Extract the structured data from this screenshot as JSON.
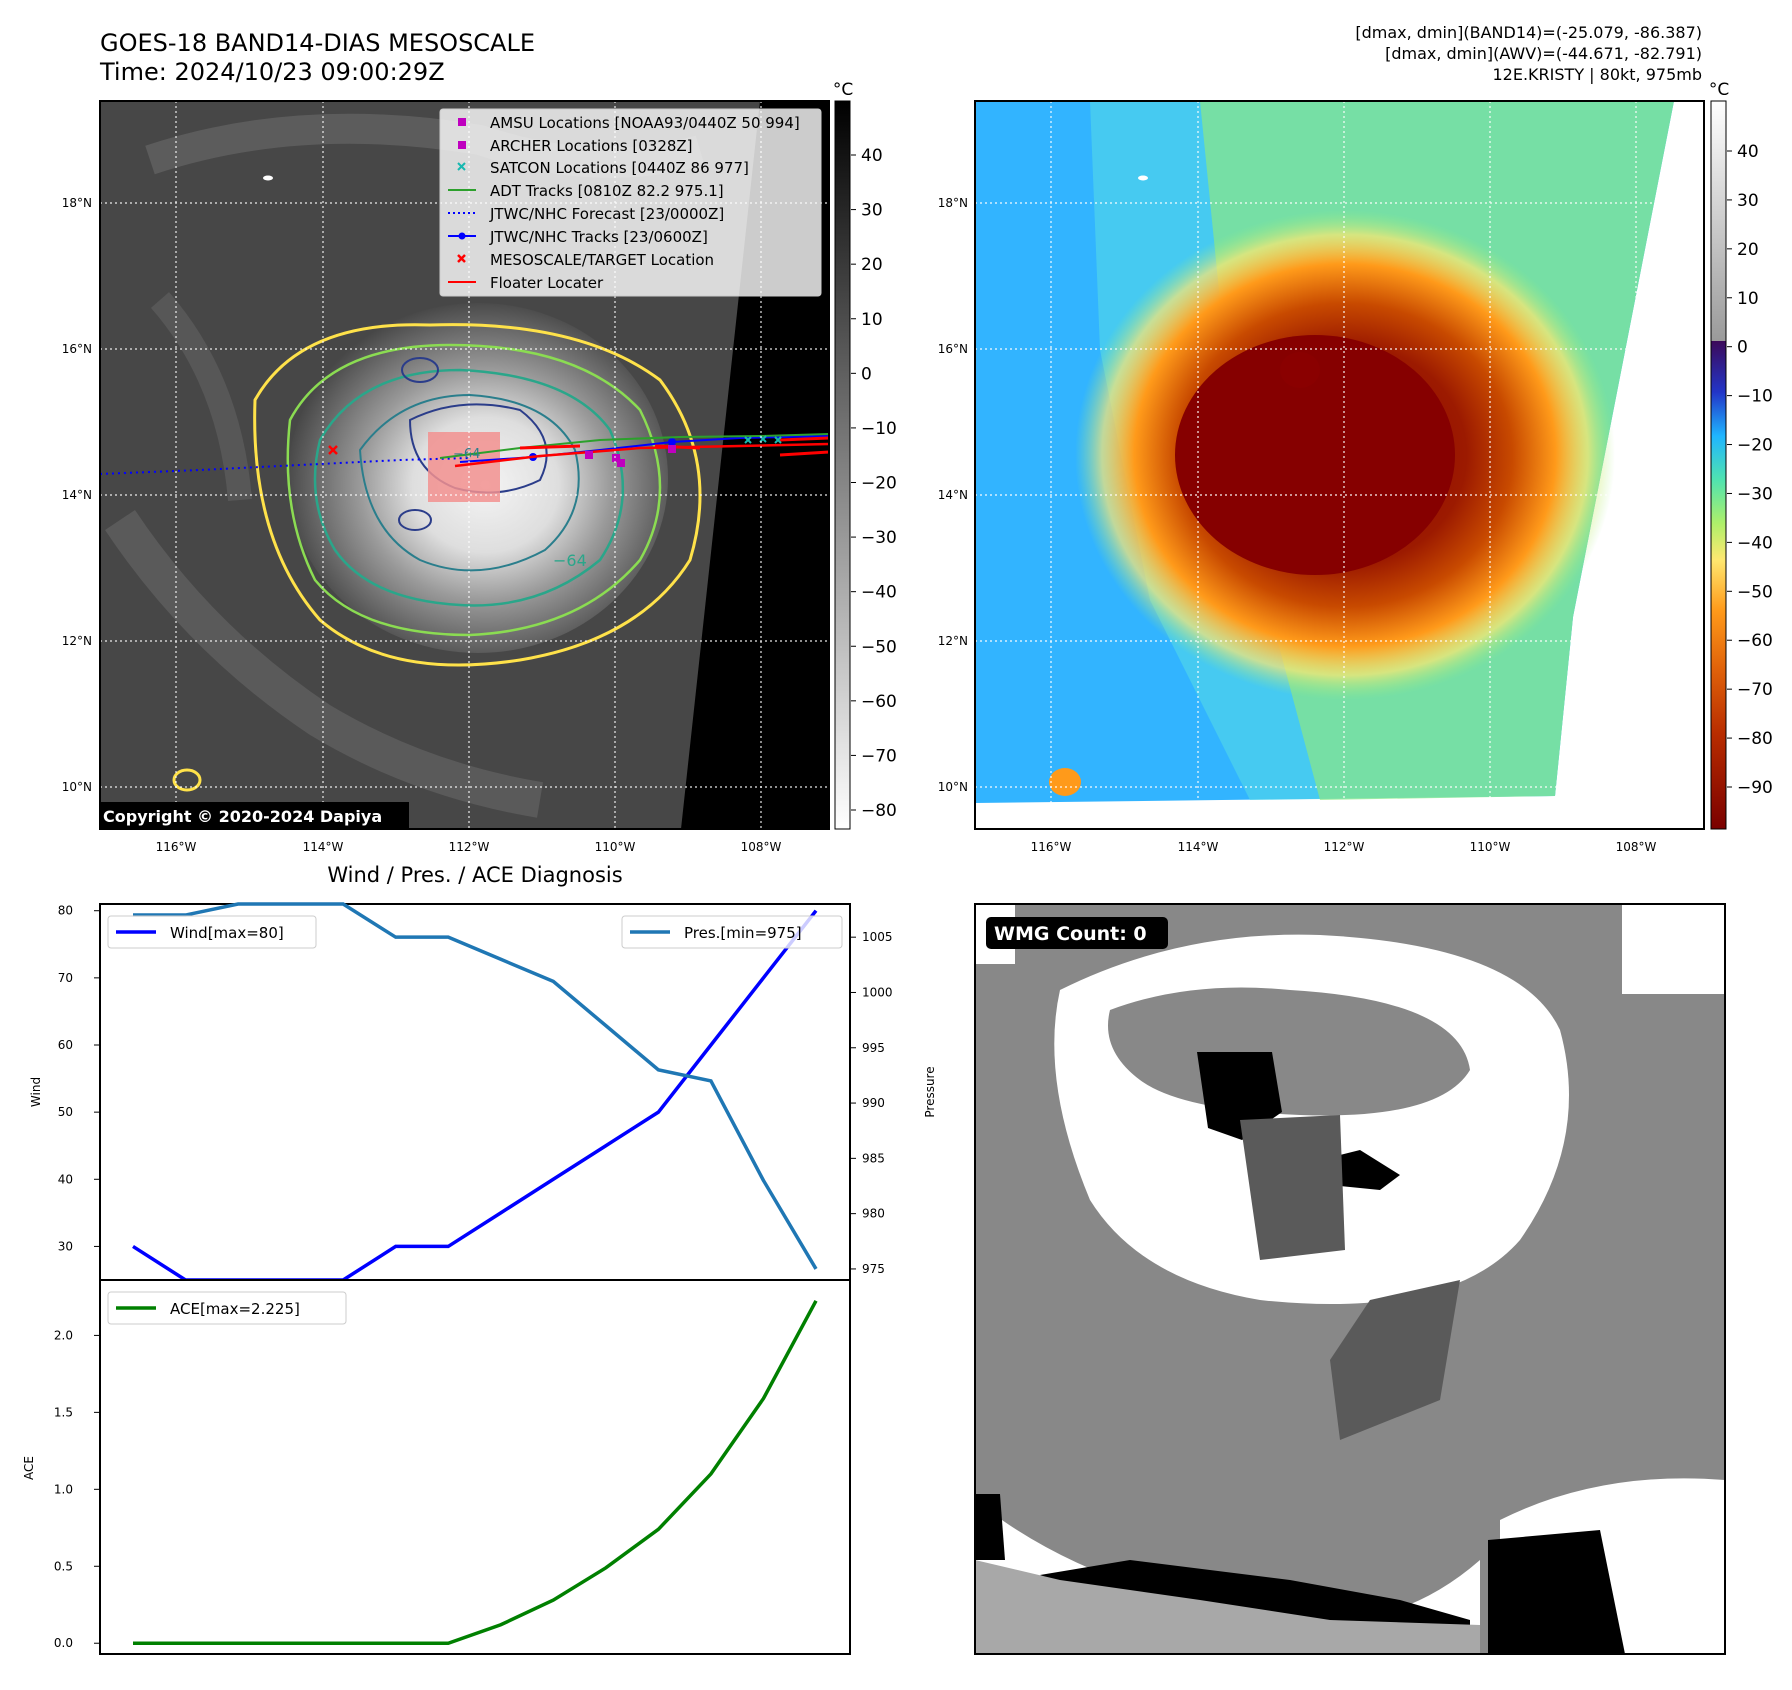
{
  "header": {
    "title_line1": "GOES-18 BAND14-DIAS MESOSCALE",
    "title_line2": "Time: 2024/10/23 09:00:29Z",
    "info_line1": "[dmax, dmin](BAND14)=(-25.079, -86.387)",
    "info_line2": "[dmax, dmin](AWV)=(-44.671, -82.791)",
    "info_line3": "12E.KRISTY | 80kt, 975mb"
  },
  "map_left": {
    "copyright": "Copyright © 2020-2024 Dapiya",
    "colorbar_unit": "°C",
    "colorbar_ticks": [
      "40",
      "30",
      "20",
      "10",
      "0",
      "−10",
      "−20",
      "−30",
      "−40",
      "−50",
      "−60",
      "−70",
      "−80"
    ],
    "contour_label_1": "−64",
    "contour_label_2": "−64",
    "legend": [
      {
        "label": "AMSU Locations [NOAA93/0440Z 50 994]",
        "color": "#bf00bf",
        "marker": "square"
      },
      {
        "label": "ARCHER Locations [0328Z]",
        "color": "#bf00bf",
        "marker": "square"
      },
      {
        "label": "SATCON Locations [0440Z 86 977]",
        "color": "#17b8b0",
        "marker": "x"
      },
      {
        "label": "ADT Tracks [0810Z 82.2 975.1]",
        "color": "#2ca02c",
        "marker": "line"
      },
      {
        "label": "JTWC/NHC Forecast [23/0000Z]",
        "color": "#0000ff",
        "marker": "dotted"
      },
      {
        "label": "JTWC/NHC Tracks [23/0600Z]",
        "color": "#0000ff",
        "marker": "line-dot"
      },
      {
        "label": "MESOSCALE/TARGET Location",
        "color": "#ff0000",
        "marker": "x"
      },
      {
        "label": "Floater Locater",
        "color": "#ff0000",
        "marker": "line"
      }
    ]
  },
  "map_right": {
    "colorbar_unit": "°C",
    "colorbar_ticks": [
      "40",
      "30",
      "20",
      "10",
      "0",
      "−10",
      "−20",
      "−30",
      "−40",
      "−50",
      "−60",
      "−70",
      "−80",
      "−90"
    ]
  },
  "map_axes": {
    "lat_labels": [
      "18°N",
      "16°N",
      "14°N",
      "12°N",
      "10°N"
    ],
    "lon_labels": [
      "116°W",
      "114°W",
      "112°W",
      "110°W",
      "108°W"
    ]
  },
  "wmg": {
    "label": "WMG Count: 0"
  },
  "chart_data": [
    {
      "type": "line",
      "title": "Wind / Pres. / ACE Diagnosis",
      "ylabel": "Wind",
      "y2label": "Pressure",
      "ylim": [
        25,
        81
      ],
      "y2lim": [
        974,
        1008
      ],
      "yticks": [
        "30",
        "40",
        "50",
        "60",
        "70",
        "80"
      ],
      "y2ticks": [
        "975",
        "980",
        "985",
        "990",
        "995",
        "1000",
        "1005"
      ],
      "x": [
        0,
        1,
        2,
        3,
        4,
        5,
        6,
        7,
        8,
        9,
        10,
        11,
        12,
        13
      ],
      "series": [
        {
          "name": "Wind[max=80]",
          "color": "#0000ff",
          "axis": "left",
          "values": [
            30,
            25,
            25,
            25,
            25,
            30,
            30,
            35,
            40,
            45,
            50,
            60,
            70,
            80
          ]
        },
        {
          "name": "Pres.[min=975]",
          "color": "#1f77b4",
          "axis": "right",
          "values": [
            1007,
            1007,
            1008,
            1008,
            1008,
            1005,
            1005,
            1003,
            1001,
            997,
            993,
            992,
            983,
            975
          ]
        }
      ]
    },
    {
      "type": "line",
      "ylabel": "ACE",
      "ylim": [
        -0.07,
        2.36
      ],
      "yticks": [
        "0.0",
        "0.5",
        "1.0",
        "1.5",
        "2.0"
      ],
      "x": [
        0,
        1,
        2,
        3,
        4,
        5,
        6,
        7,
        8,
        9,
        10,
        11,
        12,
        13
      ],
      "series": [
        {
          "name": "ACE[max=2.225]",
          "color": "#008000",
          "axis": "left",
          "values": [
            0,
            0,
            0,
            0,
            0,
            0,
            0,
            0.12,
            0.28,
            0.49,
            0.74,
            1.1,
            1.59,
            2.225
          ]
        }
      ]
    }
  ]
}
